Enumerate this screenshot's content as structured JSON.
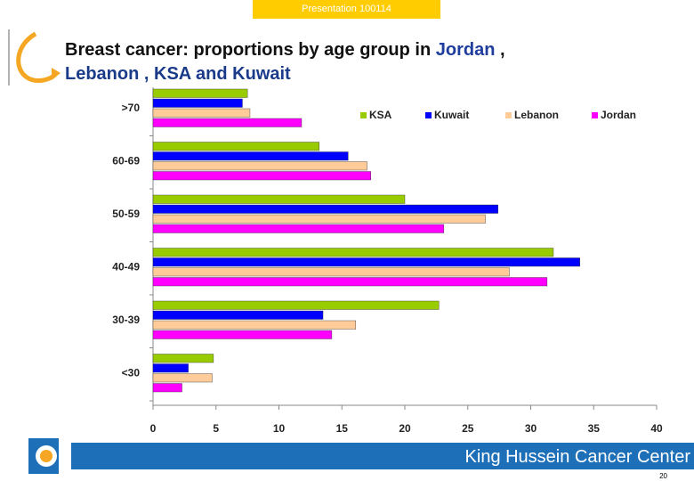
{
  "header": {
    "label": "Presentation 100114"
  },
  "title": {
    "lines": [
      [
        {
          "text": "Breast cancer: proportions by age group in ",
          "color": "#111111"
        },
        {
          "text": "Jordan",
          "color": "#1f3d9c"
        },
        {
          "text": " ,",
          "color": "#111111"
        }
      ],
      [
        {
          "text": "Lebanon , KSA and Kuwait",
          "color": "#1a3a8a"
        }
      ]
    ]
  },
  "chart_data": {
    "type": "hbar",
    "categories": [
      ">70",
      "60-69",
      "50-59",
      "40-49",
      "30-39",
      "<30"
    ],
    "series": [
      {
        "name": "KSA",
        "color": "#99cc00",
        "values": [
          7.5,
          13.2,
          20.0,
          31.8,
          22.7,
          4.8
        ]
      },
      {
        "name": "Kuwait",
        "color": "#0000ff",
        "values": [
          7.1,
          15.5,
          27.4,
          33.9,
          13.5,
          2.8
        ]
      },
      {
        "name": "Lebanon",
        "color": "#ffcc99",
        "values": [
          7.7,
          17.0,
          26.4,
          28.3,
          16.1,
          4.7
        ]
      },
      {
        "name": "Jordan",
        "color": "#ff00ff",
        "values": [
          11.8,
          17.3,
          23.1,
          31.3,
          14.2,
          2.3
        ]
      }
    ],
    "xlim": [
      0,
      40
    ],
    "xticks": [
      0,
      5,
      10,
      15,
      20,
      25,
      30,
      35,
      40
    ],
    "legend": "top-right"
  },
  "footer": {
    "organization": "King Hussein Cancer Center",
    "page": "20"
  }
}
